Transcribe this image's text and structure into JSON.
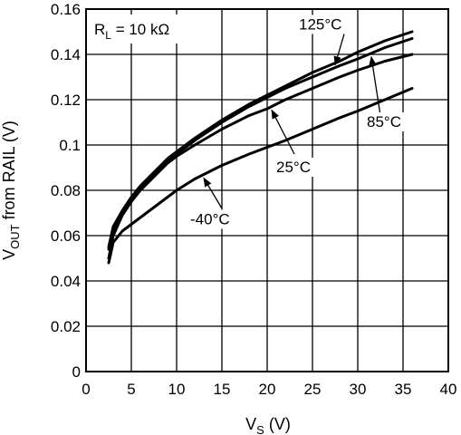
{
  "chart_data": {
    "type": "line",
    "xlabel": "V_S (V)",
    "xlabel_main": "V",
    "xlabel_sub": "S",
    "xlabel_unit": " (V)",
    "ylabel": "V_OUT from RAIL (V)",
    "ylabel_main": "V",
    "ylabel_sub": "OUT",
    "ylabel_rest": " from RAIL (V)",
    "xlim": [
      0,
      40
    ],
    "ylim": [
      0,
      0.16
    ],
    "x_ticks": [
      "0",
      "5",
      "10",
      "15",
      "20",
      "25",
      "30",
      "35",
      "40"
    ],
    "y_ticks": [
      "0",
      "0.02",
      "0.04",
      "0.06",
      "0.08",
      "0.1",
      "0.12",
      "0.14",
      "0.16"
    ],
    "grid": true,
    "condition": {
      "main": "R",
      "sub": "L",
      "rest": " = 10 kΩ"
    },
    "series": [
      {
        "name": "125°C",
        "x": [
          2.5,
          3,
          4,
          5,
          6,
          7,
          8,
          9,
          10,
          12,
          15,
          18,
          20,
          22,
          25,
          28,
          30,
          33,
          36
        ],
        "values": [
          0.055,
          0.064,
          0.071,
          0.077,
          0.082,
          0.086,
          0.09,
          0.094,
          0.097,
          0.103,
          0.111,
          0.118,
          0.122,
          0.126,
          0.132,
          0.137,
          0.141,
          0.146,
          0.15
        ]
      },
      {
        "name": "85°C",
        "x": [
          2.5,
          3,
          4,
          5,
          6,
          7,
          8,
          9,
          10,
          12,
          15,
          18,
          20,
          22,
          25,
          28,
          30,
          33,
          36
        ],
        "values": [
          0.054,
          0.062,
          0.07,
          0.076,
          0.081,
          0.085,
          0.089,
          0.093,
          0.096,
          0.102,
          0.11,
          0.117,
          0.121,
          0.125,
          0.13,
          0.135,
          0.138,
          0.143,
          0.147
        ]
      },
      {
        "name": "25°C",
        "x": [
          2.5,
          3,
          4,
          5,
          6,
          7,
          8,
          9,
          10,
          12,
          15,
          18,
          20,
          22,
          25,
          28,
          30,
          33,
          36
        ],
        "values": [
          0.05,
          0.06,
          0.069,
          0.075,
          0.08,
          0.084,
          0.088,
          0.092,
          0.095,
          0.1,
          0.107,
          0.113,
          0.116,
          0.12,
          0.125,
          0.13,
          0.133,
          0.137,
          0.14
        ]
      },
      {
        "name": "-40°C",
        "x": [
          2.5,
          3,
          4,
          5,
          6,
          7,
          8,
          9,
          10,
          12,
          15,
          18,
          20,
          22,
          25,
          28,
          30,
          33,
          36
        ],
        "values": [
          0.048,
          0.057,
          0.062,
          0.065,
          0.068,
          0.071,
          0.074,
          0.077,
          0.08,
          0.085,
          0.091,
          0.096,
          0.099,
          0.102,
          0.107,
          0.112,
          0.115,
          0.12,
          0.125
        ]
      }
    ]
  }
}
